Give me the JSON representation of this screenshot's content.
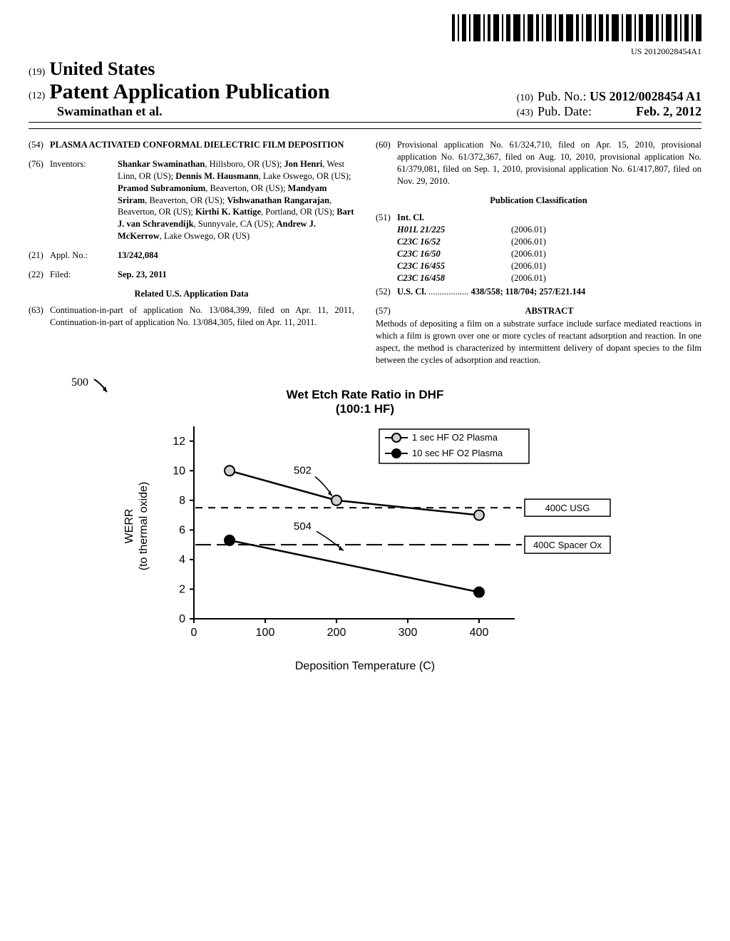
{
  "barcode_text": "US 20120028454A1",
  "header": {
    "country_num": "(19)",
    "country": "United States",
    "pub_num": "(12)",
    "pub": "Patent Application Publication",
    "authors": "Swaminathan et al.",
    "pubno_num": "(10)",
    "pubno_label": "Pub. No.:",
    "pubno": "US 2012/0028454 A1",
    "pubdate_num": "(43)",
    "pubdate_label": "Pub. Date:",
    "pubdate": "Feb. 2, 2012"
  },
  "title": {
    "num": "(54)",
    "text": "PLASMA ACTIVATED CONFORMAL DIELECTRIC FILM DEPOSITION"
  },
  "inventors": {
    "num": "(76)",
    "label": "Inventors:",
    "list": "<b>Shankar Swaminathan</b>, Hillsboro, OR (US); <b>Jon Henri</b>, West Linn, OR (US); <b>Dennis M. Hausmann</b>, Lake Oswego, OR (US); <b>Pramod Subramonium</b>, Beaverton, OR (US); <b>Mandyam Sriram</b>, Beaverton, OR (US); <b>Vishwanathan Rangarajan</b>, Beaverton, OR (US); <b>Kirthi K. Kattige</b>, Portland, OR (US); <b>Bart J. van Schravendijk</b>, Sunnyvale, CA (US); <b>Andrew J. McKerrow</b>, Lake Oswego, OR (US)"
  },
  "applno": {
    "num": "(21)",
    "label": "Appl. No.:",
    "val": "13/242,084"
  },
  "filed": {
    "num": "(22)",
    "label": "Filed:",
    "val": "Sep. 23, 2011"
  },
  "related_header": "Related U.S. Application Data",
  "related63": {
    "num": "(63)",
    "text": "Continuation-in-part of application No. 13/084,399, filed on Apr. 11, 2011, Continuation-in-part of application No. 13/084,305, filed on Apr. 11, 2011."
  },
  "related60": {
    "num": "(60)",
    "text": "Provisional application No. 61/324,710, filed on Apr. 15, 2010, provisional application No. 61/372,367, filed on Aug. 10, 2010, provisional application No. 61/379,081, filed on Sep. 1, 2010, provisional application No. 61/417,807, filed on Nov. 29, 2010."
  },
  "classification": {
    "header": "Publication Classification",
    "intcl": {
      "num": "(51)",
      "label": "Int. Cl.",
      "rows": [
        {
          "code": "H01L 21/225",
          "year": "(2006.01)"
        },
        {
          "code": "C23C 16/52",
          "year": "(2006.01)"
        },
        {
          "code": "C23C 16/50",
          "year": "(2006.01)"
        },
        {
          "code": "C23C 16/455",
          "year": "(2006.01)"
        },
        {
          "code": "C23C 16/458",
          "year": "(2006.01)"
        }
      ]
    },
    "uscl": {
      "num": "(52)",
      "label": "U.S. Cl.",
      "dots": " .................. ",
      "val": "438/558; 118/704; 257/E21.144"
    }
  },
  "abstract": {
    "num": "(57)",
    "header": "ABSTRACT",
    "text": "Methods of depositing a film on a substrate surface include surface mediated reactions in which a film is grown over one or more cycles of reactant adsorption and reaction. In one aspect, the method is characterized by intermittent delivery of dopant species to the film between the cycles of adsorption and reaction."
  },
  "chart": {
    "ref": "500",
    "ref502": "502",
    "ref504": "504",
    "title_line1": "Wet Etch Rate Ratio in DHF",
    "title_line2": "(100:1 HF)",
    "ylabel_line1": "WERR",
    "ylabel_line2": "(to thermal oxide)",
    "xlabel": "Deposition Temperature (C)",
    "xlim": [
      0,
      450
    ],
    "ylim": [
      0,
      13
    ],
    "xticks": [
      0,
      100,
      200,
      300,
      400
    ],
    "yticks": [
      0,
      2,
      4,
      6,
      8,
      10,
      12
    ],
    "series": [
      {
        "name": "1 sec HF O2 Plasma",
        "marker": "open-circle",
        "color": "#000000",
        "fill": "#d0d0d0",
        "points": [
          [
            50,
            10
          ],
          [
            200,
            8
          ],
          [
            400,
            7
          ]
        ],
        "linewidth": 2.5
      },
      {
        "name": "10 sec HF O2 Plasma",
        "marker": "filled-circle",
        "color": "#000000",
        "fill": "#000000",
        "points": [
          [
            50,
            5.3
          ],
          [
            400,
            1.8
          ]
        ],
        "linewidth": 2.5
      }
    ],
    "reference_lines": [
      {
        "label": "400C USG",
        "y": 7.5,
        "style": "short-dash"
      },
      {
        "label": "400C Spacer Ox",
        "y": 5,
        "style": "long-dash"
      }
    ],
    "axis_linewidth": 2,
    "tick_fontsize": 16,
    "label_fontsize": 16,
    "background_color": "#ffffff",
    "marker_radius": 7
  }
}
